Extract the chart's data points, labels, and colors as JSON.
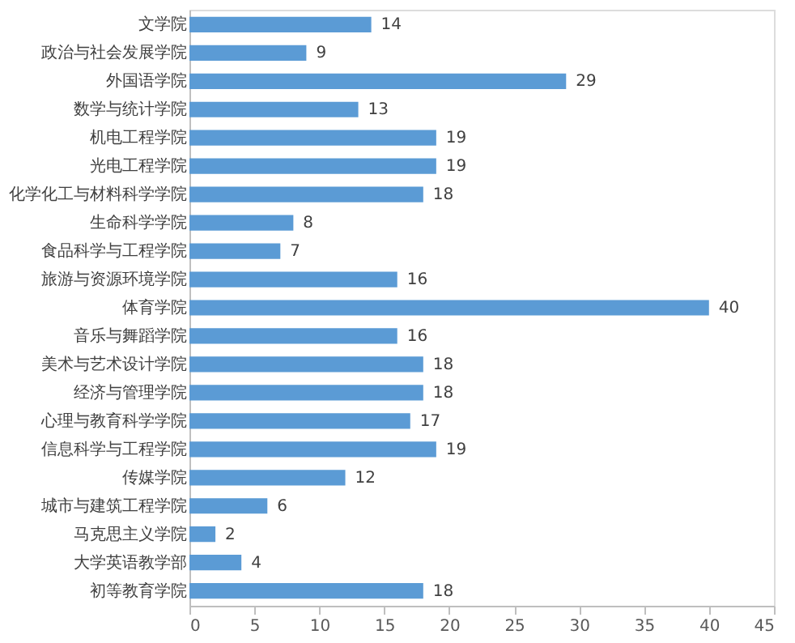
{
  "chart_data": {
    "type": "bar",
    "orientation": "horizontal",
    "categories": [
      "文学院",
      "政治与社会发展学院",
      "外国语学院",
      "数学与统计学院",
      "机电工程学院",
      "光电工程学院",
      "化学化工与材料科学学院",
      "生命科学学院",
      "食品科学与工程学院",
      "旅游与资源环境学院",
      "体育学院",
      "音乐与舞蹈学院",
      "美术与艺术设计学院",
      "经济与管理学院",
      "心理与教育科学学院",
      "信息科学与工程学院",
      "传媒学院",
      "城市与建筑工程学院",
      "马克思主义学院",
      "大学英语教学部",
      "初等教育学院"
    ],
    "values": [
      14,
      9,
      29,
      13,
      19,
      19,
      18,
      8,
      7,
      16,
      40,
      16,
      18,
      18,
      17,
      19,
      12,
      6,
      2,
      4,
      18
    ],
    "color": "#5b9bd5",
    "xlim": [
      0,
      45
    ],
    "xticks": [
      0,
      5,
      10,
      15,
      20,
      25,
      30,
      35,
      40,
      45
    ],
    "grid": false,
    "data_labels": true
  }
}
